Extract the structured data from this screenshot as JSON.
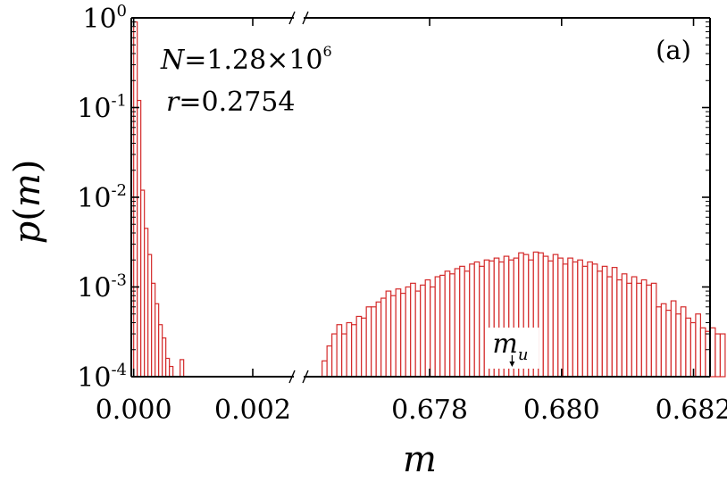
{
  "chart_data": {
    "type": "bar",
    "style": "step histogram, log-scale y axis, broken x axis",
    "panel_label": "(a)",
    "annotation_lines": [
      {
        "parts": [
          "N",
          "=1.28×10",
          "6"
        ]
      },
      {
        "parts": [
          "r",
          "=0.2754"
        ]
      }
    ],
    "xlabel": "m",
    "ylabel": "p(m)",
    "y_scale": "log",
    "ylim": [
      0.0001,
      1.0
    ],
    "y_ticks": [
      {
        "value": 1,
        "base": "10",
        "exp": "0"
      },
      {
        "value": 0.1,
        "base": "10",
        "exp": "-1"
      },
      {
        "value": 0.01,
        "base": "10",
        "exp": "-2"
      },
      {
        "value": 0.001,
        "base": "10",
        "exp": "-3"
      },
      {
        "value": 0.0001,
        "base": "10",
        "exp": "-4"
      }
    ],
    "x_break_marker": "//",
    "x_segments": [
      {
        "xlim": [
          -4e-05,
          0.00275
        ],
        "ticks": [
          {
            "value": 0.0,
            "label": "0.000"
          },
          {
            "value": 0.002,
            "label": "0.002"
          }
        ],
        "bin_width": 6e-05,
        "bins_x": [
          0.0,
          6e-05,
          0.00012,
          0.00018,
          0.00024,
          0.0003,
          0.00036,
          0.00042,
          0.00048,
          0.00054,
          0.0006,
          0.00066,
          0.00072,
          0.00078
        ],
        "bins_y": [
          0.9,
          0.12,
          0.012,
          0.0045,
          0.0023,
          0.0011,
          0.00065,
          0.00038,
          0.00027,
          0.00016,
          0.00013,
          0.0001,
          0.0001,
          0.000155
        ]
      },
      {
        "xlim": [
          0.67605,
          0.68225
        ],
        "ticks": [
          {
            "value": 0.678,
            "label": "0.678"
          },
          {
            "value": 0.68,
            "label": "0.680"
          },
          {
            "value": 0.682,
            "label": "0.682"
          }
        ],
        "bin_width": 7.45e-05,
        "bin_start": 0.67637,
        "bins_y": [
          0.00015,
          0.00022,
          0.0003,
          0.00038,
          0.0003,
          0.0004,
          0.00038,
          0.00047,
          0.00045,
          0.0006,
          0.0006,
          0.00068,
          0.00075,
          0.0009,
          0.0008,
          0.00095,
          0.00085,
          0.001,
          0.0011,
          0.0009,
          0.00105,
          0.0012,
          0.001,
          0.0013,
          0.00135,
          0.0015,
          0.0014,
          0.0016,
          0.0017,
          0.0015,
          0.0018,
          0.0019,
          0.0017,
          0.002,
          0.00195,
          0.0021,
          0.0019,
          0.0022,
          0.002,
          0.0021,
          0.0024,
          0.0023,
          0.002,
          0.00245,
          0.0024,
          0.0022,
          0.00195,
          0.0023,
          0.0021,
          0.0018,
          0.0021,
          0.0019,
          0.002,
          0.0017,
          0.0019,
          0.0018,
          0.0015,
          0.0017,
          0.0013,
          0.00165,
          0.0012,
          0.0014,
          0.0011,
          0.0013,
          0.0011,
          0.0012,
          0.00105,
          0.0011,
          0.0006,
          0.00065,
          0.00055,
          0.0007,
          0.0005,
          0.0006,
          0.00045,
          0.0004,
          0.0005,
          0.00035,
          0.00032,
          0.00035,
          0.0003,
          0.0003
        ],
        "marker": {
          "x": 0.67925,
          "label_base": "m",
          "label_sub": "u"
        }
      }
    ],
    "bar_color": "#d42a2a",
    "axis_color": "#000000"
  }
}
